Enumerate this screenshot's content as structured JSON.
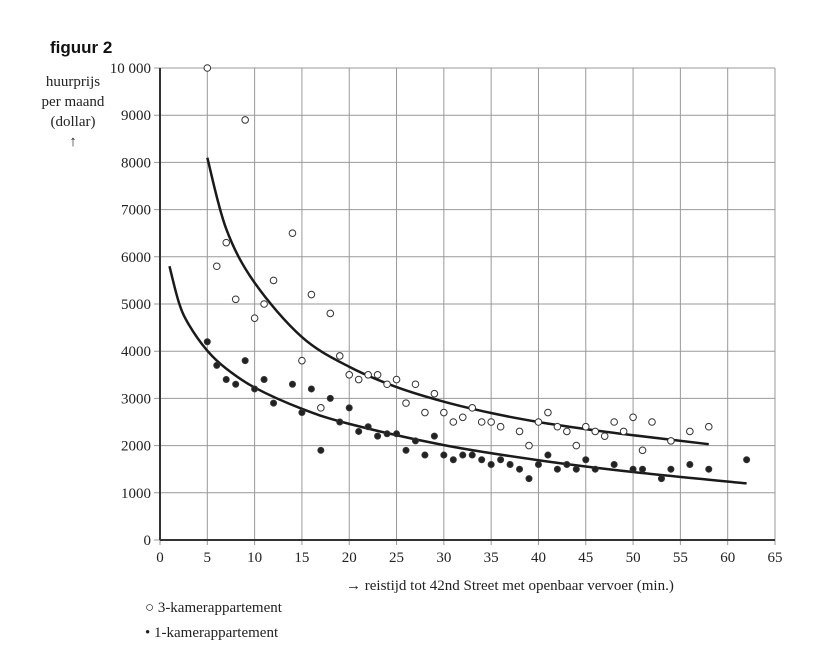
{
  "figure_label": "figuur 2",
  "chart_data": {
    "type": "scatter",
    "ylabel_lines": [
      "huurprijs",
      "per maand",
      "(dollar)"
    ],
    "ylabel_arrow": "↑",
    "xlabel": "→ reistijd tot 42nd Street met openbaar vervoer (min.)",
    "xlim": [
      0,
      65
    ],
    "ylim": [
      0,
      10000
    ],
    "xticks": [
      0,
      5,
      10,
      15,
      20,
      25,
      30,
      35,
      40,
      45,
      50,
      55,
      60,
      65
    ],
    "yticks": [
      0,
      1000,
      2000,
      3000,
      4000,
      5000,
      6000,
      7000,
      8000,
      9000,
      10000
    ],
    "ytick_labels": [
      "0",
      "1000",
      "2000",
      "3000",
      "4000",
      "5000",
      "6000",
      "7000",
      "8000",
      "9000",
      "10 000"
    ],
    "grid": true,
    "legend_placement": "bottom-left",
    "series": [
      {
        "name": "3-kamerappartement",
        "marker": "open-circle",
        "legend_symbol": "○",
        "points": [
          [
            5,
            10000
          ],
          [
            6,
            5800
          ],
          [
            7,
            6300
          ],
          [
            8,
            5100
          ],
          [
            9,
            8900
          ],
          [
            10,
            4700
          ],
          [
            11,
            5000
          ],
          [
            12,
            5500
          ],
          [
            14,
            6500
          ],
          [
            15,
            3800
          ],
          [
            16,
            5200
          ],
          [
            17,
            2800
          ],
          [
            18,
            4800
          ],
          [
            19,
            3900
          ],
          [
            20,
            3500
          ],
          [
            21,
            3400
          ],
          [
            22,
            3500
          ],
          [
            23,
            3500
          ],
          [
            24,
            3300
          ],
          [
            25,
            3400
          ],
          [
            26,
            2900
          ],
          [
            27,
            3300
          ],
          [
            28,
            2700
          ],
          [
            29,
            3100
          ],
          [
            30,
            2700
          ],
          [
            31,
            2500
          ],
          [
            32,
            2600
          ],
          [
            33,
            2800
          ],
          [
            34,
            2500
          ],
          [
            35,
            2500
          ],
          [
            36,
            2400
          ],
          [
            38,
            2300
          ],
          [
            39,
            2000
          ],
          [
            40,
            2500
          ],
          [
            41,
            2700
          ],
          [
            42,
            2400
          ],
          [
            43,
            2300
          ],
          [
            44,
            2000
          ],
          [
            45,
            2400
          ],
          [
            46,
            2300
          ],
          [
            47,
            2200
          ],
          [
            48,
            2500
          ],
          [
            49,
            2300
          ],
          [
            50,
            2600
          ],
          [
            51,
            1900
          ],
          [
            52,
            2500
          ],
          [
            54,
            2100
          ],
          [
            56,
            2300
          ],
          [
            58,
            2400
          ]
        ],
        "trend": [
          [
            5,
            8100
          ],
          [
            7,
            6590
          ],
          [
            10,
            5450
          ],
          [
            15,
            4300
          ],
          [
            20,
            3670
          ],
          [
            25,
            3240
          ],
          [
            30,
            2930
          ],
          [
            35,
            2690
          ],
          [
            40,
            2500
          ],
          [
            45,
            2350
          ],
          [
            50,
            2220
          ],
          [
            58,
            2030
          ]
        ]
      },
      {
        "name": "1-kamerappartement",
        "marker": "filled-circle",
        "legend_symbol": "•",
        "points": [
          [
            5,
            4200
          ],
          [
            6,
            3700
          ],
          [
            7,
            3400
          ],
          [
            8,
            3300
          ],
          [
            9,
            3800
          ],
          [
            10,
            3200
          ],
          [
            11,
            3400
          ],
          [
            12,
            2900
          ],
          [
            14,
            3300
          ],
          [
            15,
            2700
          ],
          [
            16,
            3200
          ],
          [
            17,
            1900
          ],
          [
            18,
            3000
          ],
          [
            19,
            2500
          ],
          [
            20,
            2800
          ],
          [
            21,
            2300
          ],
          [
            22,
            2400
          ],
          [
            23,
            2200
          ],
          [
            24,
            2250
          ],
          [
            25,
            2250
          ],
          [
            26,
            1900
          ],
          [
            27,
            2100
          ],
          [
            28,
            1800
          ],
          [
            29,
            2200
          ],
          [
            30,
            1800
          ],
          [
            31,
            1700
          ],
          [
            32,
            1800
          ],
          [
            33,
            1800
          ],
          [
            34,
            1700
          ],
          [
            35,
            1600
          ],
          [
            36,
            1700
          ],
          [
            37,
            1600
          ],
          [
            38,
            1500
          ],
          [
            39,
            1300
          ],
          [
            40,
            1600
          ],
          [
            41,
            1800
          ],
          [
            42,
            1500
          ],
          [
            43,
            1600
          ],
          [
            44,
            1500
          ],
          [
            45,
            1700
          ],
          [
            46,
            1500
          ],
          [
            48,
            1600
          ],
          [
            50,
            1500
          ],
          [
            51,
            1500
          ],
          [
            53,
            1300
          ],
          [
            54,
            1500
          ],
          [
            56,
            1600
          ],
          [
            58,
            1500
          ],
          [
            62,
            1700
          ]
        ],
        "trend": [
          [
            1,
            5800
          ],
          [
            2,
            5030
          ],
          [
            3,
            4580
          ],
          [
            5,
            4010
          ],
          [
            7,
            3630
          ],
          [
            10,
            3230
          ],
          [
            15,
            2780
          ],
          [
            20,
            2460
          ],
          [
            30,
            2010
          ],
          [
            40,
            1690
          ],
          [
            50,
            1440
          ],
          [
            62,
            1200
          ]
        ]
      }
    ],
    "color": "#222222"
  }
}
